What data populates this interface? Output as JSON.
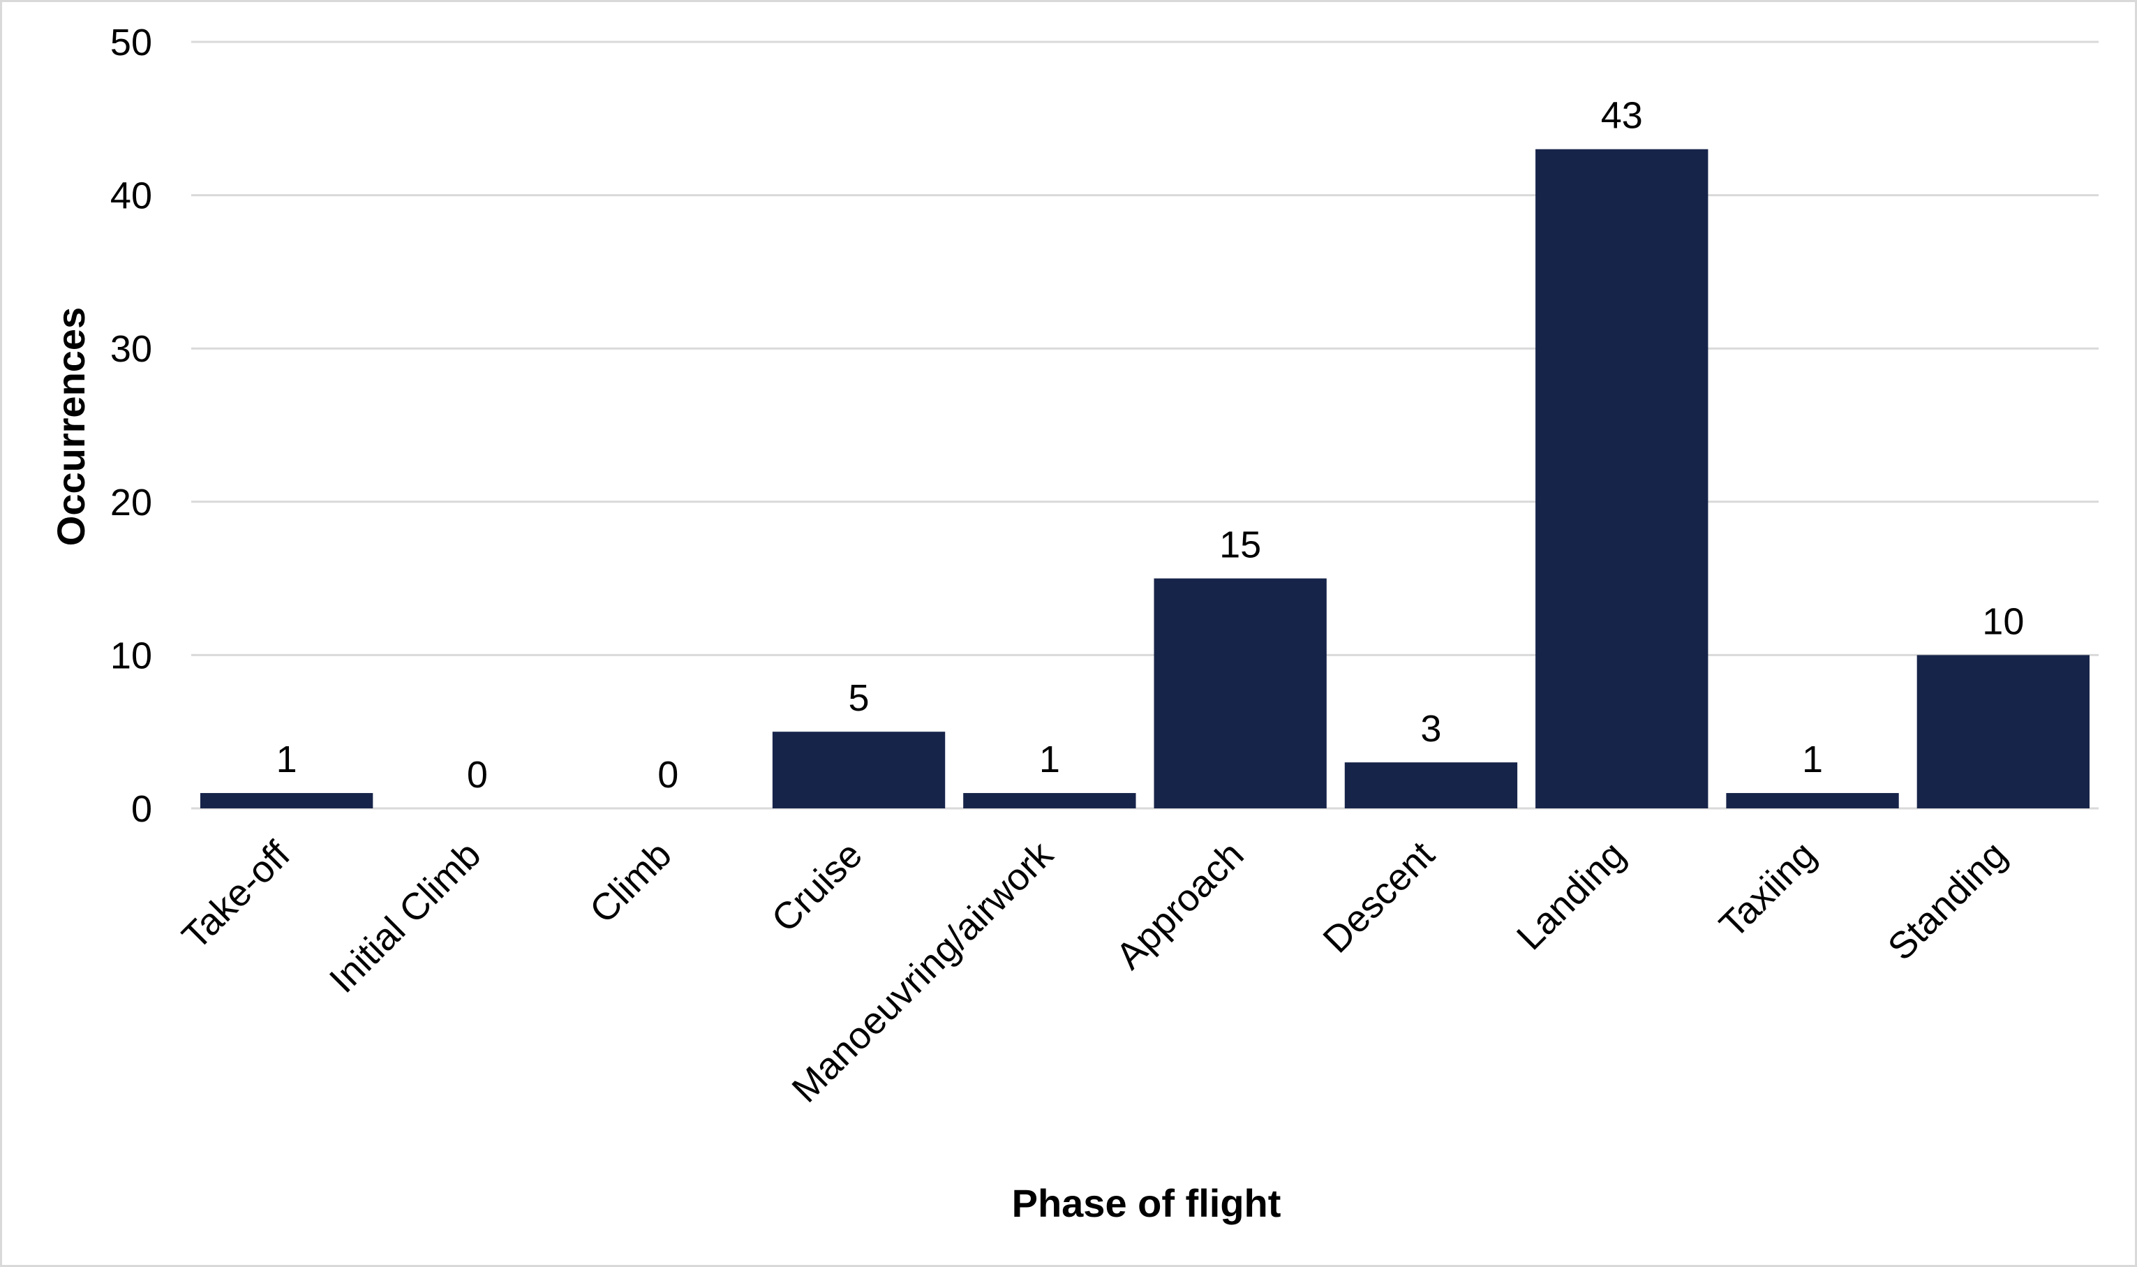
{
  "chart_data": {
    "type": "bar",
    "title": "",
    "xlabel": "Phase of flight",
    "ylabel": "Occurrences",
    "categories": [
      "Take-off",
      "Initial Climb",
      "Climb",
      "Cruise",
      "Manoeuvring/airwork",
      "Approach",
      "Descent",
      "Landing",
      "Taxiing",
      "Standing"
    ],
    "values": [
      1,
      0,
      0,
      5,
      1,
      15,
      3,
      43,
      1,
      10
    ],
    "data_labels": [
      "1",
      "0",
      "0",
      "5",
      "1",
      "15",
      "3",
      "43",
      "1",
      "10"
    ],
    "ylim": [
      0,
      50
    ],
    "yticks": [
      0,
      10,
      20,
      30,
      40,
      50
    ],
    "ytick_labels": [
      "0",
      "10",
      "20",
      "30",
      "40",
      "50"
    ],
    "grid": true,
    "legend": "none",
    "colors": {
      "bar": "#17244a",
      "grid": "#d9d9d9",
      "baseline": "#d9d9d9",
      "frame": "#d9d9d9"
    }
  }
}
